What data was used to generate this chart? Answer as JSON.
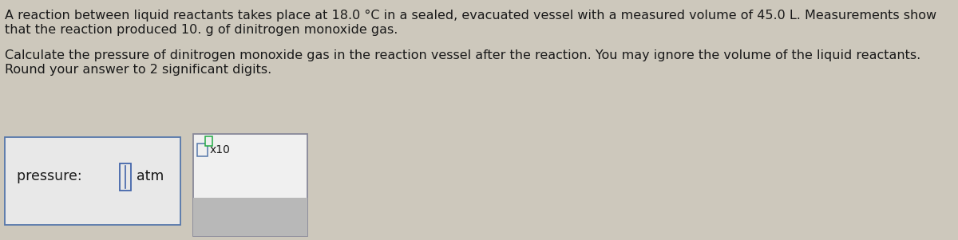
{
  "bg_color": "#cdc8bc",
  "text_color": "#1a1a1a",
  "line1": "A reaction between liquid reactants takes place at 18.0 °C in a sealed, evacuated vessel with a measured volume of 45.0 L. Measurements show",
  "line2": "that the reaction produced 10. g of dinitrogen monoxide gas.",
  "line3": "Calculate the pressure of dinitrogen monoxide gas in the reaction vessel after the reaction. You may ignore the volume of the liquid reactants.",
  "line4": "Round your answer to 2 significant digits.",
  "pressure_label": "pressure: ",
  "unit_label": "atm",
  "box1_color": "#e8e8e8",
  "box1_border": "#5577aa",
  "box2_color": "#f0f0f0",
  "box2_border": "#888899",
  "button_bar_color": "#b8b8b8",
  "cursor_color": "#4466aa",
  "x10_box_color": "#f0f0f0",
  "x10_box_border": "#5577aa",
  "x10_sup_border": "#22aa44",
  "button_labels": [
    "×",
    "↺",
    "?"
  ],
  "font_size_body": 11.5,
  "font_size_label": 12.5,
  "font_size_buttons": 14
}
